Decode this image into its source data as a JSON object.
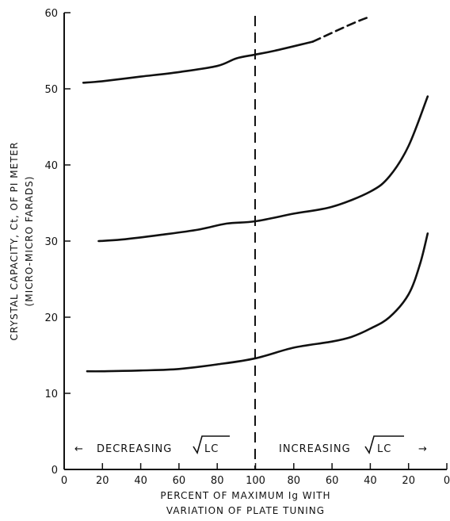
{
  "chart_data": {
    "type": "line",
    "title": "",
    "xlabel": "PERCENT OF MAXIMUM Ig WITH",
    "xlabel_line2": "VARIATION OF PLATE TUNING",
    "ylabel": "CRYSTAL CAPACITY, Ct, OF PI METER",
    "ylabel_line2": "(MICRO-MICRO FARADS)",
    "ylim": [
      0,
      60
    ],
    "x_tick_labels": [
      "0",
      "20",
      "40",
      "60",
      "80",
      "100",
      "80",
      "60",
      "40",
      "20",
      "0"
    ],
    "y_tick_labels": [
      "0",
      "10",
      "20",
      "30",
      "40",
      "50",
      "60"
    ],
    "annotations": {
      "left": "DECREASING",
      "right": "INCREASING",
      "radical": "LC",
      "left_arrow": "←",
      "right_arrow": "→"
    },
    "x_axis_note": "x is a continuous tuning position: 0..100 = percent of max Ig while decreasing √LC, 100..200 = the mirrored scale (100 down to 0) while increasing √LC",
    "series": [
      {
        "x": [
          10,
          20,
          40,
          60,
          80,
          90,
          100,
          110,
          130,
          150,
          160
        ],
        "y": [
          50.8,
          51.0,
          51.6,
          52.2,
          53.0,
          54.0,
          54.5,
          55.0,
          56.2,
          58.5,
          59.5
        ],
        "dashed_from_x": 145
      },
      {
        "x": [
          18,
          30,
          50,
          70,
          85,
          100,
          120,
          140,
          160,
          170,
          180,
          190
        ],
        "y": [
          30.0,
          30.2,
          30.8,
          31.5,
          32.3,
          32.6,
          33.6,
          34.5,
          36.5,
          38.5,
          42.5,
          49.0
        ]
      },
      {
        "x": [
          12,
          20,
          40,
          60,
          80,
          100,
          120,
          140,
          150,
          160,
          170,
          180,
          186,
          190
        ],
        "y": [
          12.9,
          12.9,
          13.0,
          13.2,
          13.8,
          14.6,
          16.0,
          16.8,
          17.4,
          18.5,
          20.0,
          23.0,
          27.0,
          31.0
        ]
      }
    ]
  }
}
